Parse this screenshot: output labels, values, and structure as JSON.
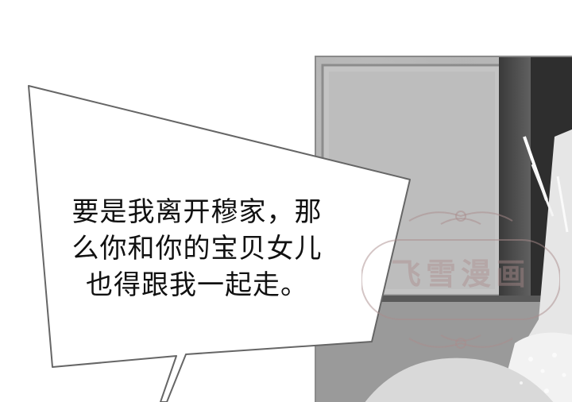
{
  "dialogue": {
    "lines": [
      "要是我离开穆家，那",
      "么你和你的宝贝女儿",
      "也得跟我一起走。"
    ]
  },
  "watermark": {
    "text": "飞雪漫画"
  }
}
